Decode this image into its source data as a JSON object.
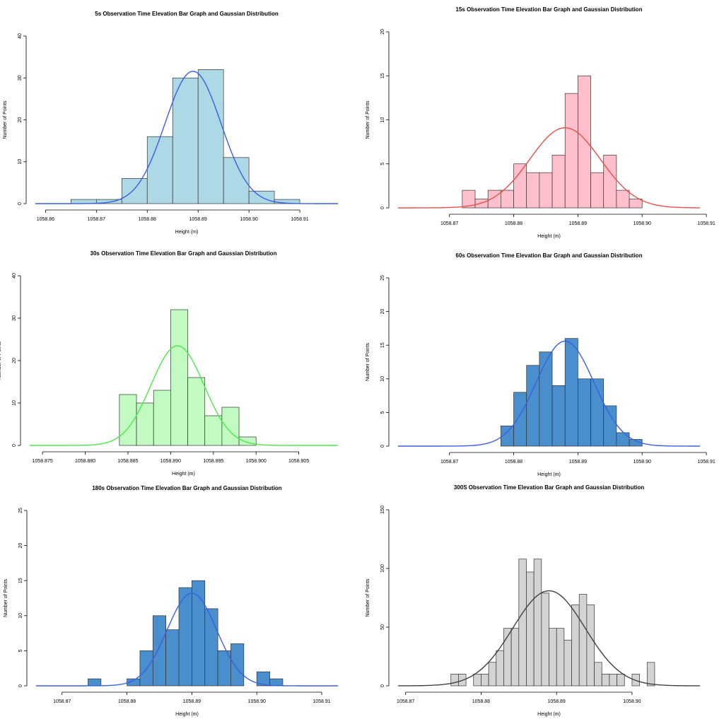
{
  "chart_data": [
    {
      "type": "bar",
      "title": "5s Observation Time Elevation Bar Graph and Gaussian Distribution",
      "xlabel": "Height (m)",
      "ylabel": "Number of Points",
      "xlim": [
        1058.858,
        1058.9175
      ],
      "ylim": [
        0,
        40
      ],
      "xticks": [
        1058.86,
        1058.87,
        1058.88,
        1058.89,
        1058.9,
        1058.91
      ],
      "xtick_labels": [
        "1058.86",
        "1058.87",
        "1058.88",
        "1058.89",
        "1058.90",
        "1058.91"
      ],
      "yticks": [
        0,
        10,
        20,
        30,
        40
      ],
      "ytick_labels": [
        "0",
        "10",
        "20",
        "30",
        "40"
      ],
      "bin_edges": [
        1058.865,
        1058.87,
        1058.875,
        1058.88,
        1058.885,
        1058.89,
        1058.895,
        1058.9,
        1058.905,
        1058.91
      ],
      "counts": [
        1,
        1,
        6,
        16,
        30,
        32,
        11,
        3,
        1
      ],
      "bar_color": "#add8e6",
      "curve_color": "#3a5fe0",
      "gaussian": {
        "mean": 1058.889,
        "peak": 31.6,
        "sd": 0.0055
      }
    },
    {
      "type": "bar",
      "title": "15s Observation Time Elevation Bar Graph and Gaussian Distribution",
      "xlabel": "Height (m)",
      "ylabel": "Number of Points",
      "xlim": [
        1058.862,
        1058.909
      ],
      "ylim": [
        0,
        20
      ],
      "xticks": [
        1058.87,
        1058.88,
        1058.89,
        1058.9,
        1058.91
      ],
      "xtick_labels": [
        "1058.87",
        "1058.88",
        "1058.89",
        "1058.90",
        "1058.91"
      ],
      "yticks": [
        0,
        5,
        10,
        15,
        20
      ],
      "ytick_labels": [
        "0",
        "5",
        "10",
        "15",
        "20"
      ],
      "bin_edges": [
        1058.872,
        1058.874,
        1058.876,
        1058.878,
        1058.88,
        1058.882,
        1058.884,
        1058.886,
        1058.888,
        1058.89,
        1058.892,
        1058.894,
        1058.896,
        1058.898,
        1058.9
      ],
      "counts": [
        2,
        1,
        2,
        2,
        5,
        4,
        4,
        6,
        13,
        15,
        4,
        6,
        2,
        1
      ],
      "bar_color": "#ffc0cb",
      "curve_color": "#e8504a",
      "gaussian": {
        "mean": 1058.888,
        "peak": 9.1,
        "sd": 0.0055
      }
    },
    {
      "type": "bar",
      "title": "30s Observation Time Elevation Bar Graph and Gaussian Distribution",
      "xlabel": "Height (m)",
      "ylabel": "Number of Points",
      "xlim": [
        1058.8735,
        1058.9095
      ],
      "ylim": [
        0,
        40
      ],
      "xticks": [
        1058.875,
        1058.88,
        1058.885,
        1058.89,
        1058.895,
        1058.9,
        1058.905
      ],
      "xtick_labels": [
        "1058.875",
        "1058.880",
        "1058.885",
        "1058.890",
        "1058.895",
        "1058.900",
        "1058.905"
      ],
      "yticks": [
        0,
        10,
        20,
        30,
        40
      ],
      "ytick_labels": [
        "0",
        "10",
        "20",
        "30",
        "40"
      ],
      "bin_edges": [
        1058.884,
        1058.886,
        1058.888,
        1058.89,
        1058.892,
        1058.894,
        1058.896,
        1058.898,
        1058.9
      ],
      "counts": [
        12,
        10,
        13,
        32,
        16,
        7,
        9,
        2
      ],
      "bar_color": "#c1fbc1",
      "curve_color": "#4ce84c",
      "gaussian": {
        "mean": 1058.8908,
        "peak": 23.5,
        "sd": 0.0031
      }
    },
    {
      "type": "bar",
      "title": "60s Observation Time Elevation Bar Graph and Gaussian Distribution",
      "xlabel": "Height (m)",
      "ylabel": "Number of Points",
      "xlim": [
        1058.862,
        1058.909
      ],
      "ylim": [
        0,
        25
      ],
      "xticks": [
        1058.87,
        1058.88,
        1058.89,
        1058.9,
        1058.91
      ],
      "xtick_labels": [
        "1058.87",
        "1058.88",
        "1058.89",
        "1058.90",
        "1058.91"
      ],
      "yticks": [
        0,
        5,
        10,
        15,
        20,
        25
      ],
      "ytick_labels": [
        "0",
        "5",
        "10",
        "15",
        "20",
        "25"
      ],
      "bin_edges": [
        1058.878,
        1058.88,
        1058.882,
        1058.884,
        1058.886,
        1058.888,
        1058.89,
        1058.892,
        1058.894,
        1058.896,
        1058.898,
        1058.9
      ],
      "counts": [
        3,
        8,
        12,
        14,
        9,
        16,
        10,
        10,
        6,
        2,
        1
      ],
      "bar_color": "#4a8fcd",
      "curve_color": "#3a5fe0",
      "gaussian": {
        "mean": 1058.888,
        "peak": 15.6,
        "sd": 0.0045
      }
    },
    {
      "type": "bar",
      "title": "180s Observation Time Elevation Bar Graph and Gaussian Distribution",
      "xlabel": "Height (m)",
      "ylabel": "Number of Points",
      "xlim": [
        1058.866,
        1058.9125
      ],
      "ylim": [
        0,
        25
      ],
      "xticks": [
        1058.87,
        1058.88,
        1058.89,
        1058.9,
        1058.91
      ],
      "xtick_labels": [
        "1058.87",
        "1058.88",
        "1058.89",
        "1058.90",
        "1058.91"
      ],
      "yticks": [
        0,
        5,
        10,
        15,
        20,
        25
      ],
      "ytick_labels": [
        "0",
        "5",
        "10",
        "15",
        "20",
        "25"
      ],
      "bin_edges": [
        1058.874,
        1058.876,
        1058.878,
        1058.88,
        1058.882,
        1058.884,
        1058.886,
        1058.888,
        1058.89,
        1058.892,
        1058.894,
        1058.896,
        1058.898,
        1058.9,
        1058.902,
        1058.904
      ],
      "counts": [
        1,
        0,
        0,
        1,
        5,
        10,
        8,
        14,
        15,
        11,
        5,
        6,
        0,
        2,
        1
      ],
      "bar_color": "#4a8fcd",
      "curve_color": "#3a5fe0",
      "gaussian": {
        "mean": 1058.89,
        "peak": 13.2,
        "sd": 0.0038
      }
    },
    {
      "type": "bar",
      "title": "300S Observation Time Elevation Bar Graph and Gaussian Distribution",
      "xlabel": "Height (m)",
      "ylabel": "Number of Points",
      "xlim": [
        1058.869,
        1058.909
      ],
      "ylim": [
        0,
        150
      ],
      "xticks": [
        1058.87,
        1058.88,
        1058.89,
        1058.9
      ],
      "xtick_labels": [
        "1058.87",
        "1058.88",
        "1058.89",
        "1058.90"
      ],
      "yticks": [
        0,
        50,
        100,
        150
      ],
      "ytick_labels": [
        "0",
        "50",
        "100",
        "150"
      ],
      "bin_edges": [
        1058.876,
        1058.877,
        1058.878,
        1058.879,
        1058.88,
        1058.881,
        1058.882,
        1058.883,
        1058.884,
        1058.885,
        1058.886,
        1058.887,
        1058.888,
        1058.889,
        1058.89,
        1058.891,
        1058.892,
        1058.893,
        1058.894,
        1058.895,
        1058.896,
        1058.897,
        1058.898,
        1058.899,
        1058.9,
        1058.901,
        1058.902,
        1058.903
      ],
      "counts": [
        10,
        10,
        0,
        10,
        10,
        20,
        30,
        49,
        49,
        108,
        97,
        108,
        79,
        49,
        49,
        39,
        69,
        78,
        69,
        20,
        10,
        10,
        10,
        0,
        10,
        0,
        20
      ],
      "bar_color": "#d3d3d3",
      "curve_color": "#3f3f3f",
      "gaussian": {
        "mean": 1058.889,
        "peak": 81,
        "sd": 0.0048
      }
    }
  ]
}
